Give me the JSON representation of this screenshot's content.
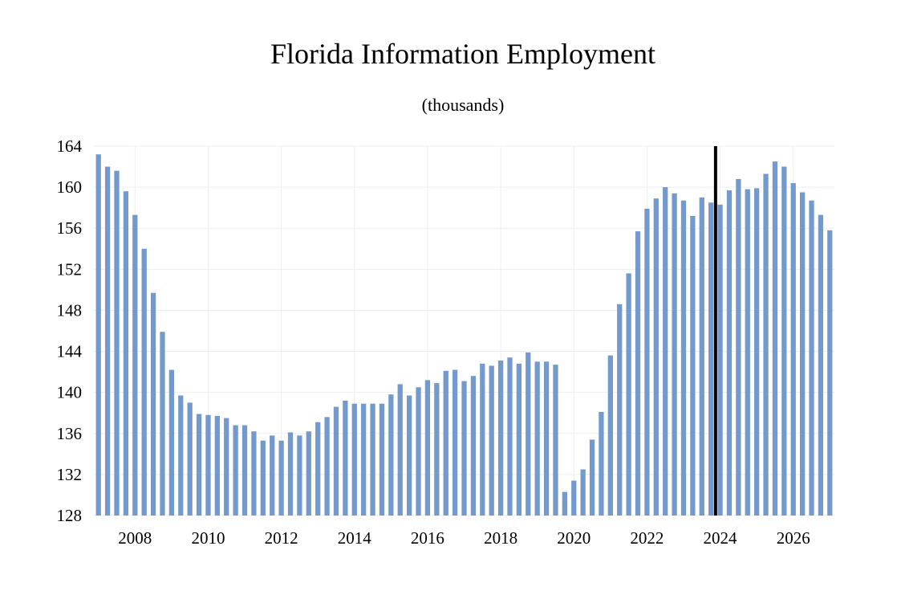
{
  "chart_data": {
    "type": "bar",
    "title": "Florida Information Employment",
    "subtitle": "(thousands)",
    "xlabel": "",
    "ylabel": "",
    "ylim": [
      128,
      164
    ],
    "yticks": [
      128,
      132,
      136,
      140,
      144,
      148,
      152,
      156,
      160,
      164
    ],
    "xticks": [
      "2008",
      "2010",
      "2012",
      "2014",
      "2016",
      "2018",
      "2020",
      "2022",
      "2024",
      "2026"
    ],
    "grid": true,
    "bar_color": "#7499cc",
    "forecast_marker_color": "#000000",
    "x_start_year": 2007,
    "x_start_quarter": 1,
    "forecast_start": "2024 Q1",
    "values": [
      163.2,
      162.0,
      161.6,
      159.6,
      157.3,
      154.0,
      149.7,
      145.9,
      142.2,
      139.7,
      139.0,
      137.9,
      137.8,
      137.7,
      137.5,
      136.8,
      136.8,
      136.2,
      135.3,
      135.8,
      135.3,
      136.1,
      135.8,
      136.2,
      137.1,
      137.6,
      138.6,
      139.2,
      138.9,
      138.9,
      138.9,
      138.9,
      139.8,
      140.8,
      139.7,
      140.5,
      141.2,
      140.9,
      142.1,
      142.2,
      141.1,
      141.6,
      142.8,
      142.6,
      143.1,
      143.4,
      142.8,
      143.9,
      143.0,
      143.0,
      142.7,
      130.3,
      131.4,
      132.5,
      135.4,
      138.1,
      143.6,
      148.6,
      151.6,
      155.7,
      157.9,
      158.9,
      160.0,
      159.4,
      158.7,
      157.2,
      159.0,
      158.5,
      158.3,
      159.7,
      160.8,
      159.8,
      159.9,
      161.3,
      162.5,
      162.0,
      160.4,
      159.5,
      158.7,
      157.3,
      155.8
    ]
  }
}
